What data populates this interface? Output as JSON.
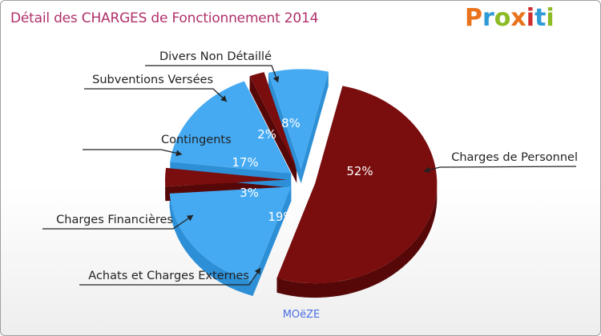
{
  "title": "Détail des CHARGES de Fonctionnement 2014",
  "logo": {
    "text": "Proxiti",
    "colors": [
      "#e8731c",
      "#2e9bd6",
      "#8cbb26",
      "#e8731c",
      "#cf2d2d",
      "#2e9bd6",
      "#8cbb26"
    ]
  },
  "subtitle": "MOëZE",
  "colors": {
    "dark_red": "#7a0d0d",
    "dark_red_side": "#560808",
    "blue": "#45aaf2",
    "blue_side": "#2d8fd6",
    "title": "#b0306a",
    "subtitle": "#4d6fe3"
  },
  "chart_data": {
    "type": "pie",
    "title": "Détail des CHARGES de Fonctionnement 2014",
    "unit": "%",
    "slices": [
      {
        "label": "Charges de Personnel",
        "value": 52,
        "display": "52%",
        "color": "dark_red"
      },
      {
        "label": "Achats et Charges Externes",
        "value": 19,
        "display": "19%",
        "color": "blue"
      },
      {
        "label": "Charges Financières",
        "value": 3,
        "display": "3%",
        "color": "dark_red"
      },
      {
        "label": "Contingents",
        "value": 17,
        "display": "17%",
        "color": "blue"
      },
      {
        "label": "Subventions Versées",
        "value": 2,
        "display": "2%",
        "color": "dark_red"
      },
      {
        "label": "Divers Non Détaillé",
        "value": 8,
        "display": "8%",
        "color": "blue"
      }
    ]
  }
}
